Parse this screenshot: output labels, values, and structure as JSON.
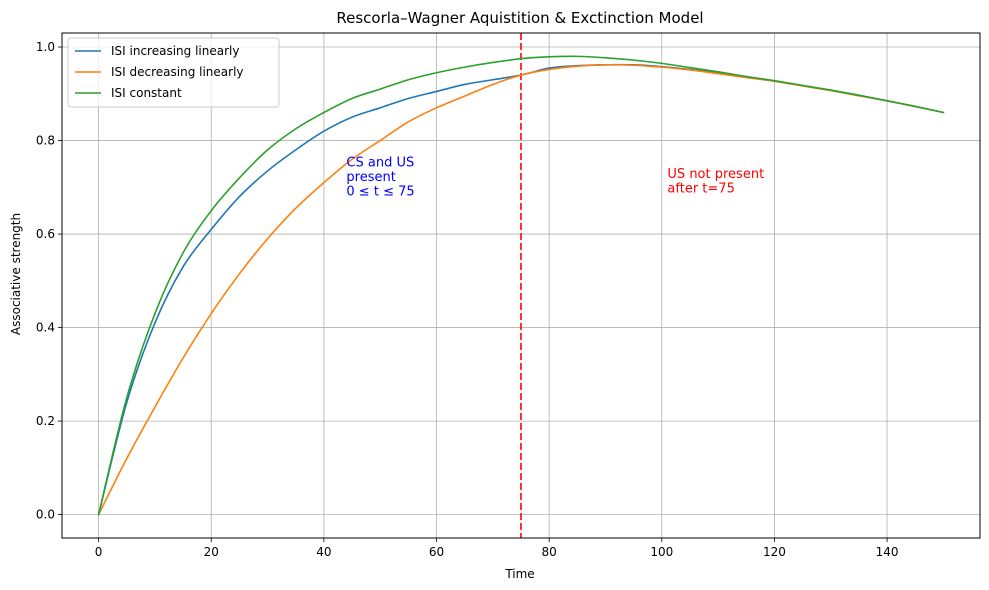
{
  "chart_data": {
    "type": "line",
    "title": "Rescorla–Wagner Aquistition & Exctinction Model",
    "xlabel": "Time",
    "ylabel": "Associative strength",
    "xlim": [
      -6.5,
      156.5
    ],
    "ylim": [
      -0.05,
      1.03
    ],
    "x_ticks": [
      0,
      20,
      40,
      60,
      80,
      100,
      120,
      140
    ],
    "y_ticks": [
      0.0,
      0.2,
      0.4,
      0.6,
      0.8,
      1.0
    ],
    "x_tick_labels": [
      "0",
      "20",
      "40",
      "60",
      "80",
      "100",
      "120",
      "140"
    ],
    "y_tick_labels": [
      "0.0",
      "0.2",
      "0.4",
      "0.6",
      "0.8",
      "1.0"
    ],
    "grid": true,
    "legend_position": "top-left",
    "x": [
      0,
      5,
      10,
      15,
      20,
      25,
      30,
      35,
      40,
      45,
      50,
      55,
      60,
      65,
      70,
      75,
      80,
      85,
      90,
      95,
      100,
      105,
      110,
      115,
      120,
      125,
      130,
      135,
      140,
      145,
      150
    ],
    "series": [
      {
        "name": "ISI increasing linearly",
        "color": "#1f77b4",
        "values": [
          0.0,
          0.24,
          0.41,
          0.53,
          0.61,
          0.68,
          0.735,
          0.78,
          0.82,
          0.85,
          0.87,
          0.89,
          0.905,
          0.92,
          0.93,
          0.94,
          0.955,
          0.96,
          0.962,
          0.962,
          0.958,
          0.952,
          0.944,
          0.935,
          0.927,
          0.917,
          0.907,
          0.896,
          0.885,
          0.873,
          0.86
        ]
      },
      {
        "name": "ISI decreasing linearly",
        "color": "#ff7f0e",
        "values": [
          0.0,
          0.12,
          0.23,
          0.335,
          0.43,
          0.515,
          0.59,
          0.655,
          0.71,
          0.76,
          0.8,
          0.84,
          0.87,
          0.895,
          0.92,
          0.94,
          0.952,
          0.959,
          0.962,
          0.961,
          0.957,
          0.951,
          0.943,
          0.935,
          0.927,
          0.917,
          0.907,
          0.896,
          0.885,
          0.873,
          0.86
        ]
      },
      {
        "name": "ISI constant",
        "color": "#2ca02c",
        "values": [
          0.0,
          0.25,
          0.43,
          0.56,
          0.65,
          0.72,
          0.78,
          0.825,
          0.86,
          0.89,
          0.91,
          0.93,
          0.945,
          0.957,
          0.967,
          0.975,
          0.979,
          0.98,
          0.977,
          0.972,
          0.965,
          0.956,
          0.947,
          0.937,
          0.928,
          0.918,
          0.908,
          0.897,
          0.885,
          0.873,
          0.86
        ]
      }
    ],
    "vline": {
      "x": 75,
      "color": "#ff0000",
      "style": "dashed"
    },
    "annotations": [
      {
        "lines": [
          "CS and US",
          "present",
          "0 ≤ t ≤ 75"
        ],
        "x": 44,
        "y": 0.745,
        "color": "#0000ff"
      },
      {
        "lines": [
          "US not present",
          "after t=75"
        ],
        "x": 101,
        "y": 0.72,
        "color": "#ff0000"
      }
    ]
  }
}
